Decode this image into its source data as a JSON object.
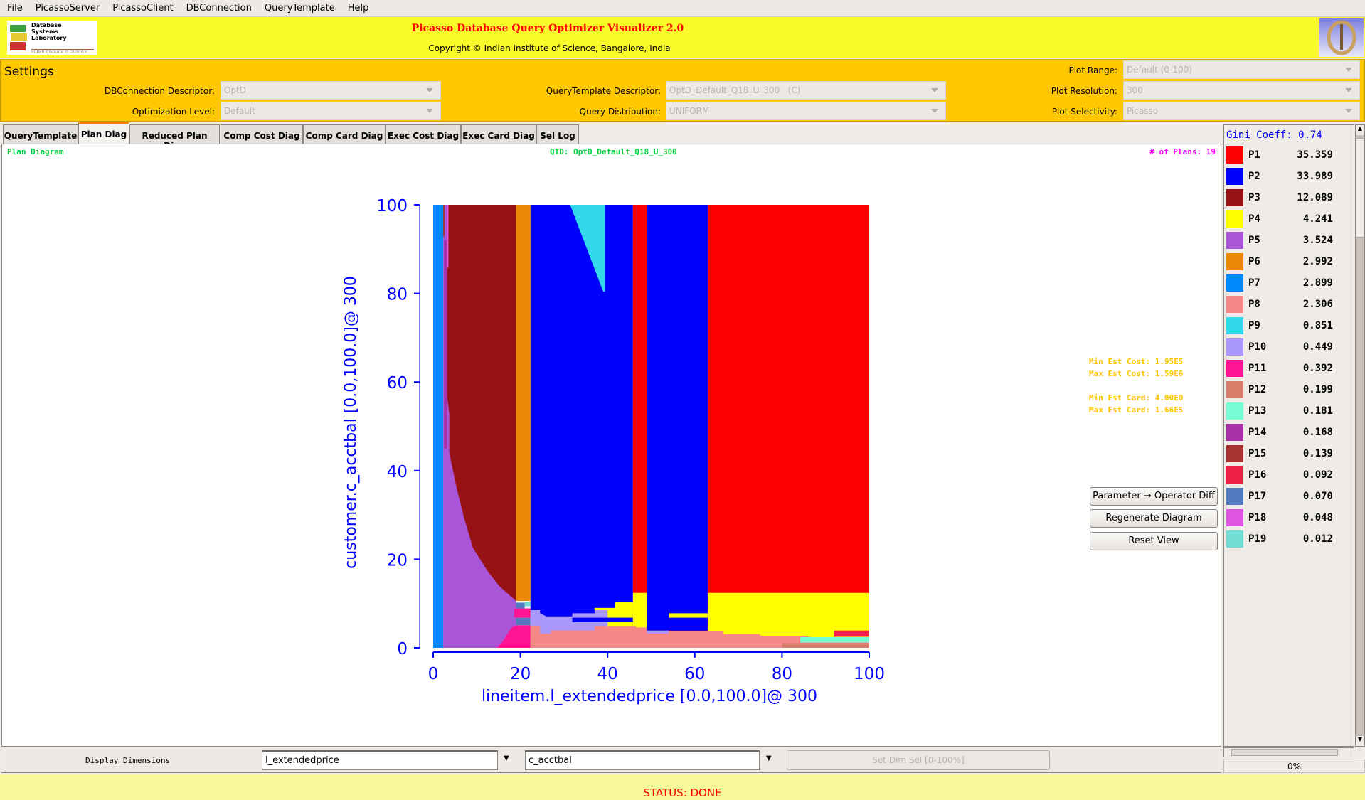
{
  "menu": [
    "File",
    "PicassoServer",
    "PicassoClient",
    "DBConnection",
    "QueryTemplate",
    "Help"
  ],
  "header": {
    "title": "Picasso Database Query Optimizer Visualizer 2.0",
    "copyright": "Copyright © Indian Institute of Science, Bangalore, India",
    "logo_text": [
      "Database",
      "Systems",
      "Laboratory",
      "Indian Institute of Science"
    ]
  },
  "settings": {
    "title": "Settings",
    "dbconn_label": "DBConnection Descriptor:",
    "dbconn_value": "OptD",
    "optlevel_label": "Optimization Level:",
    "optlevel_value": "Default",
    "qtd_label": "QueryTemplate Descriptor:",
    "qtd_value": "OptD_Default_Q18_U_300   (C)",
    "dist_label": "Query Distribution:",
    "dist_value": "UNIFORM",
    "range_label": "Plot Range:",
    "range_value": "Default (0-100)",
    "res_label": "Plot Resolution:",
    "res_value": "300",
    "sel_label": "Plot Selectivity:",
    "sel_value": "Picasso"
  },
  "tabs": [
    "QueryTemplate",
    "Plan Diag",
    "Reduced Plan Diag",
    "Comp Cost Diag",
    "Comp Card Diag",
    "Exec Cost Diag",
    "Exec Card Diag",
    "Sel Log"
  ],
  "active_tab": "Plan Diag",
  "diagram": {
    "heading": "Plan Diagram",
    "qtd": "QTD: OptD_Default_Q18_U_300",
    "num_plans": "# of Plans: 19",
    "min_cost": "Min Est Cost: 1.95E5",
    "max_cost": "Max Est Cost: 1.59E6",
    "min_card": "Min Est Card: 4.00E0",
    "max_card": "Max Est Card: 1.66E5"
  },
  "buttons": {
    "param_diff": "Parameter → Operator Diff",
    "regenerate": "Regenerate Diagram",
    "reset": "Reset View"
  },
  "legend": {
    "gini": "Gini Coeff: 0.74",
    "plans": [
      {
        "name": "P1",
        "value": "35.359",
        "color": "#ff0000"
      },
      {
        "name": "P2",
        "value": "33.989",
        "color": "#0000ff"
      },
      {
        "name": "P3",
        "value": "12.089",
        "color": "#961214"
      },
      {
        "name": "P4",
        "value": "4.241",
        "color": "#ffff00"
      },
      {
        "name": "P5",
        "value": "3.524",
        "color": "#a855d8"
      },
      {
        "name": "P6",
        "value": "2.992",
        "color": "#eb8808"
      },
      {
        "name": "P7",
        "value": "2.899",
        "color": "#0088ff"
      },
      {
        "name": "P8",
        "value": "2.306",
        "color": "#f78888"
      },
      {
        "name": "P9",
        "value": "0.851",
        "color": "#33d8ea"
      },
      {
        "name": "P10",
        "value": "0.449",
        "color": "#aa99fa"
      },
      {
        "name": "P11",
        "value": "0.392",
        "color": "#ff1493"
      },
      {
        "name": "P12",
        "value": "0.199",
        "color": "#da7e6c"
      },
      {
        "name": "P13",
        "value": "0.181",
        "color": "#77fdd4"
      },
      {
        "name": "P14",
        "value": "0.168",
        "color": "#a830a8"
      },
      {
        "name": "P15",
        "value": "0.139",
        "color": "#a83232"
      },
      {
        "name": "P16",
        "value": "0.092",
        "color": "#ee2046"
      },
      {
        "name": "P17",
        "value": "0.070",
        "color": "#527ac0"
      },
      {
        "name": "P18",
        "value": "0.048",
        "color": "#e055e0"
      },
      {
        "name": "P19",
        "value": "0.012",
        "color": "#72dcd4"
      }
    ]
  },
  "chart_data": {
    "type": "heatmap",
    "xlabel": "lineitem.l_extendedprice [0.0,100.0]@ 300",
    "ylabel": "customer.c_acctbal [0.0,100.0]@ 300",
    "xlim": [
      0,
      100
    ],
    "ylim": [
      0,
      100
    ],
    "xticks": [
      "0",
      "20",
      "40",
      "60",
      "80",
      "100"
    ],
    "yticks": [
      "0",
      "20",
      "40",
      "60",
      "80",
      "100"
    ],
    "regions": [
      {
        "plan": "P1",
        "points": [
          [
            45.8,
            0
          ],
          [
            100,
            0
          ],
          [
            100,
            100
          ],
          [
            45.8,
            100
          ]
        ]
      },
      {
        "plan": "P4",
        "points": [
          [
            45.8,
            0
          ],
          [
            49,
            0
          ],
          [
            49,
            12.4
          ],
          [
            45.8,
            12.4
          ]
        ]
      },
      {
        "plan": "P4",
        "points": [
          [
            62.95,
            0
          ],
          [
            100,
            0
          ],
          [
            100,
            12.4
          ],
          [
            62.95,
            12.4
          ]
        ]
      },
      {
        "plan": "P4",
        "points": [
          [
            22.3,
            0
          ],
          [
            45.8,
            0
          ],
          [
            45.8,
            10.6
          ],
          [
            22.3,
            10.6
          ]
        ]
      },
      {
        "plan": "P10",
        "points": [
          [
            22.3,
            3
          ],
          [
            40,
            3
          ],
          [
            40,
            8.5
          ],
          [
            22.3,
            8.5
          ]
        ]
      },
      {
        "plan": "P2",
        "points": [
          [
            22.3,
            100
          ],
          [
            45.8,
            100
          ],
          [
            45.8,
            10.3
          ],
          [
            41.7,
            10.3
          ],
          [
            41.7,
            9.0
          ],
          [
            37,
            9.0
          ],
          [
            37,
            7.8
          ],
          [
            31.9,
            7.8
          ],
          [
            31.9,
            7.1
          ],
          [
            26,
            7.1
          ],
          [
            24.5,
            7.8
          ],
          [
            24.5,
            8.5
          ],
          [
            22.3,
            8.5
          ],
          [
            22.3,
            100
          ]
        ]
      },
      {
        "plan": "P2",
        "points": [
          [
            31.9,
            5.8
          ],
          [
            45.8,
            5.8
          ],
          [
            45.8,
            6.8
          ],
          [
            31.9,
            6.8
          ]
        ]
      },
      {
        "plan": "P9",
        "points": [
          [
            31.4,
            100
          ],
          [
            39.4,
            100
          ],
          [
            39.4,
            80.4
          ],
          [
            39.0,
            80.4
          ]
        ]
      },
      {
        "plan": "P2",
        "points": [
          [
            49,
            3.9
          ],
          [
            62.95,
            3.9
          ],
          [
            62.95,
            100
          ],
          [
            49,
            100
          ]
        ]
      },
      {
        "plan": "P4",
        "points": [
          [
            54,
            6.8
          ],
          [
            62.95,
            6.8
          ],
          [
            62.95,
            7.8
          ],
          [
            54,
            7.8
          ]
        ]
      },
      {
        "plan": "P10",
        "points": [
          [
            49,
            3.2
          ],
          [
            54,
            3.2
          ],
          [
            54,
            3.9
          ],
          [
            49,
            3.9
          ]
        ]
      },
      {
        "plan": "P8",
        "points": [
          [
            22.3,
            0
          ],
          [
            100,
            0
          ],
          [
            100,
            2.2
          ],
          [
            88,
            2.2
          ],
          [
            85,
            2.7
          ],
          [
            75,
            2.7
          ],
          [
            75,
            3.1
          ],
          [
            66.5,
            3.1
          ],
          [
            66.5,
            3.7
          ],
          [
            54,
            3.7
          ],
          [
            54,
            3.2
          ],
          [
            49,
            3.2
          ],
          [
            49,
            4.6
          ],
          [
            46.5,
            4.6
          ],
          [
            46.5,
            4.9
          ],
          [
            37,
            4.9
          ],
          [
            37,
            3.9
          ],
          [
            27,
            3.9
          ],
          [
            27,
            3.2
          ],
          [
            24.5,
            3.2
          ],
          [
            24.5,
            5
          ],
          [
            22.3,
            5
          ]
        ]
      },
      {
        "plan": "P16",
        "points": [
          [
            92,
            2.5
          ],
          [
            100,
            2.5
          ],
          [
            100,
            3.9
          ],
          [
            92,
            3.9
          ]
        ]
      },
      {
        "plan": "P13",
        "points": [
          [
            84.2,
            1.2
          ],
          [
            100,
            1.2
          ],
          [
            100,
            2.4
          ],
          [
            84.2,
            2.4
          ]
        ]
      },
      {
        "plan": "P12",
        "points": [
          [
            80,
            0
          ],
          [
            100,
            0
          ],
          [
            100,
            1.1
          ],
          [
            80,
            1.1
          ]
        ]
      },
      {
        "plan": "P5",
        "points": [
          [
            2.3,
            0
          ],
          [
            19,
            0
          ],
          [
            19,
            100
          ],
          [
            2.3,
            100
          ]
        ]
      },
      {
        "plan": "P3",
        "points": [
          [
            3.2,
            100
          ],
          [
            19,
            100
          ],
          [
            19,
            10.6
          ],
          [
            15.2,
            13.9
          ],
          [
            12.5,
            17.3
          ],
          [
            9.1,
            22.6
          ],
          [
            7.1,
            29.3
          ],
          [
            5.4,
            36
          ],
          [
            3.7,
            44
          ],
          [
            3.7,
            52.7
          ],
          [
            3.2,
            56.8
          ]
        ]
      },
      {
        "plan": "P14",
        "points": [
          [
            2.5,
            45
          ],
          [
            3.2,
            45
          ],
          [
            3.2,
            92
          ],
          [
            2.5,
            92
          ]
        ]
      },
      {
        "plan": "P15",
        "points": [
          [
            2.1,
            92.8
          ],
          [
            2.6,
            92.8
          ],
          [
            2.6,
            100
          ],
          [
            2.1,
            100
          ]
        ]
      },
      {
        "plan": "P18",
        "points": [
          [
            3.1,
            85.8
          ],
          [
            3.5,
            85.8
          ],
          [
            3.5,
            100
          ],
          [
            3.1,
            100
          ]
        ]
      },
      {
        "plan": "P7",
        "points": [
          [
            0,
            0
          ],
          [
            2.3,
            0
          ],
          [
            2.3,
            100
          ],
          [
            0,
            100
          ]
        ]
      },
      {
        "plan": "P6",
        "points": [
          [
            19,
            10.6
          ],
          [
            22.3,
            10.6
          ],
          [
            22.3,
            100
          ],
          [
            19,
            100
          ]
        ]
      },
      {
        "plan": "P11",
        "points": [
          [
            14.7,
            0
          ],
          [
            22.3,
            0
          ],
          [
            22.3,
            5.1
          ],
          [
            19,
            5.1
          ],
          [
            18,
            4.6
          ],
          [
            16,
            1.5
          ]
        ]
      },
      {
        "plan": "P17",
        "points": [
          [
            19,
            5.1
          ],
          [
            22.3,
            5.1
          ],
          [
            22.3,
            6.8
          ],
          [
            19,
            6.8
          ]
        ]
      },
      {
        "plan": "P11",
        "points": [
          [
            18.6,
            6.8
          ],
          [
            22.3,
            6.8
          ],
          [
            22.3,
            8.9
          ],
          [
            18.6,
            8.9
          ]
        ]
      },
      {
        "plan": "P17",
        "points": [
          [
            19,
            8.9
          ],
          [
            21,
            8.9
          ],
          [
            21,
            10.2
          ],
          [
            19,
            10.2
          ]
        ]
      },
      {
        "plan": "P19",
        "points": [
          [
            21,
            9.4
          ],
          [
            22.3,
            9.4
          ],
          [
            22.3,
            10.4
          ],
          [
            21,
            10.4
          ]
        ]
      }
    ]
  },
  "bottom": {
    "display_dims_label": "Display Dimensions",
    "dim1": "l_extendedprice",
    "dim2": "c_acctbal",
    "set_dim_sel": "Set Dim Sel [0-100%]",
    "progress": "0%"
  },
  "status": "STATUS: DONE"
}
